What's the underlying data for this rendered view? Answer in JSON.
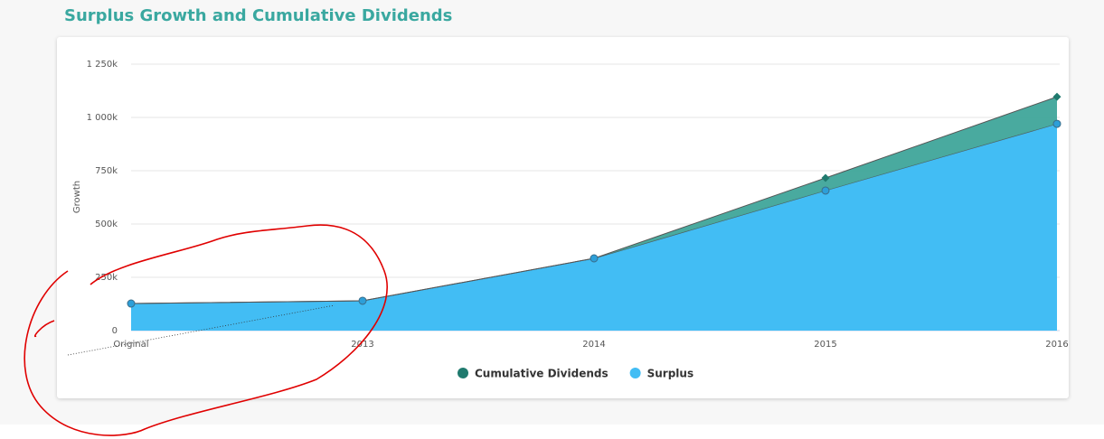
{
  "chart_data": {
    "type": "stacked_area",
    "title": "Surplus Growth and Cumulative Dividends",
    "y_label": "Growth",
    "categories": [
      "Original",
      "2013",
      "2014",
      "2015",
      "2016"
    ],
    "series": [
      {
        "name": "Cumulative Dividends",
        "color": "#3fa59a",
        "marker_color": "#1f7a6e",
        "values": [
          0,
          0,
          0,
          59000,
          127000
        ]
      },
      {
        "name": "Surplus",
        "color": "#42bdf4",
        "marker_color": "#2d9fd8",
        "values": [
          127000,
          140000,
          339000,
          657000,
          970000
        ]
      }
    ],
    "ylim": [
      0,
      1250000
    ],
    "yticks": [
      0,
      {
        "value": 250000,
        "label": "250k"
      },
      {
        "value": 500000,
        "label": "500k"
      },
      {
        "value": 750000,
        "label": "750k"
      },
      {
        "value": 1000000,
        "label": "1 000k"
      },
      {
        "value": 1250000,
        "label": "1 250k"
      }
    ],
    "grid": true,
    "legend": "bottom"
  }
}
